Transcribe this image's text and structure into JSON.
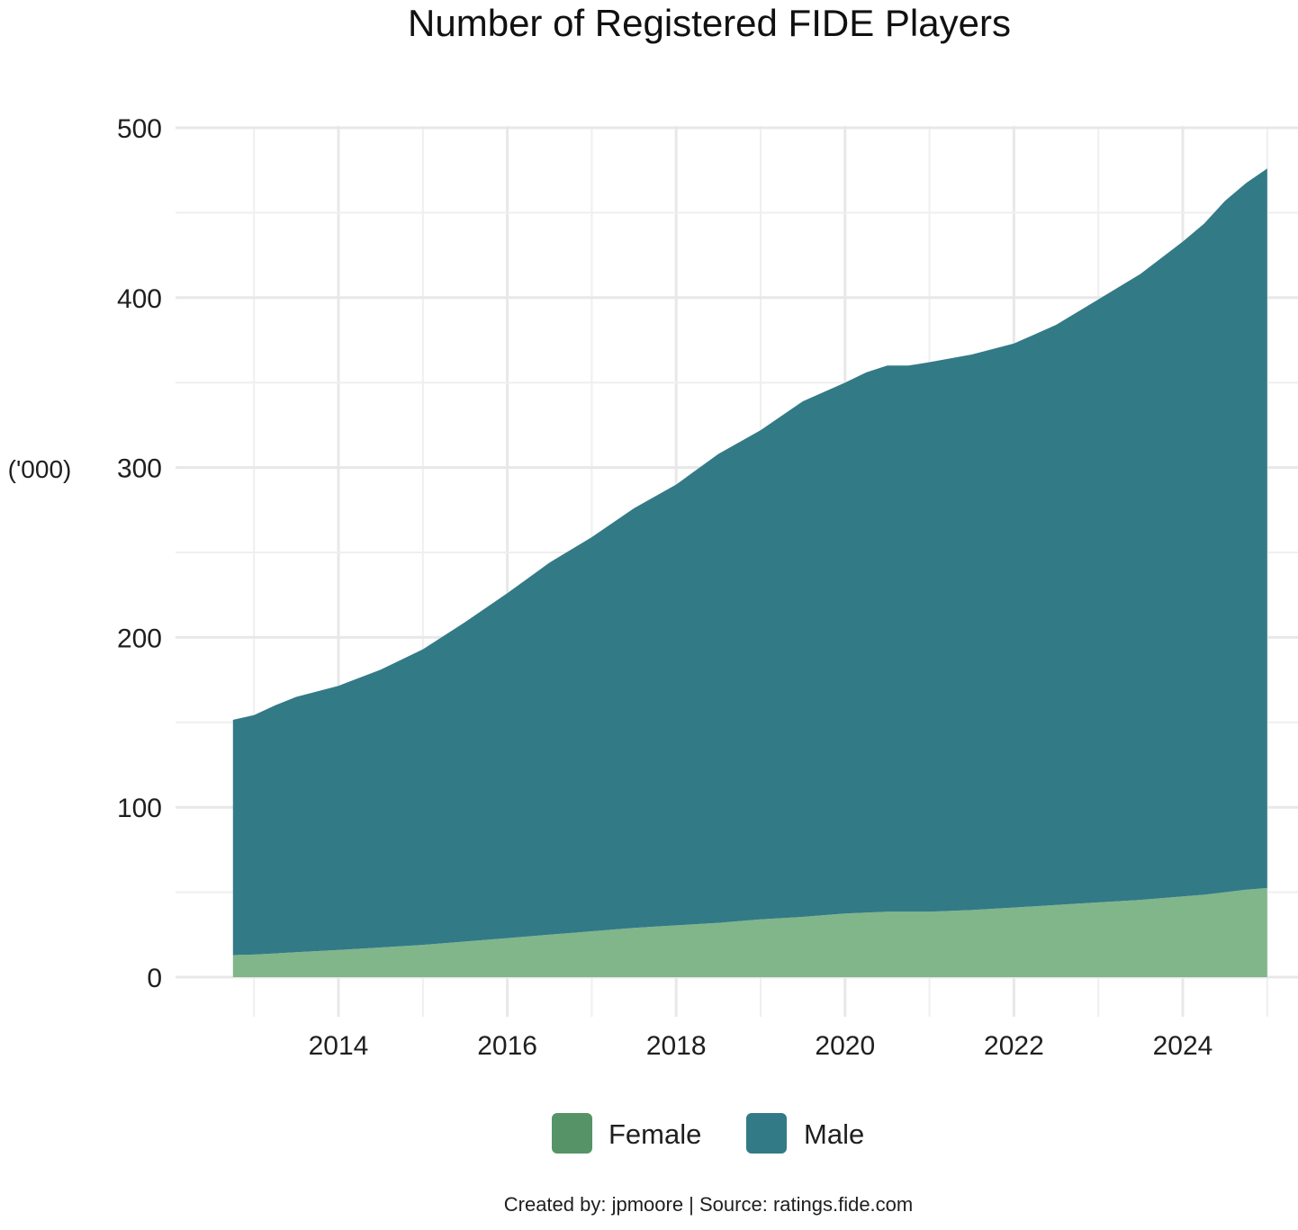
{
  "chart_data": {
    "type": "area",
    "stacked": true,
    "title": "Number of Registered FIDE Players",
    "xlabel": "",
    "ylabel": "('000)",
    "caption": "Created by: jpmoore | Source: ratings.fide.com",
    "x_ticks": [
      "2014",
      "2016",
      "2018",
      "2020",
      "2022",
      "2024"
    ],
    "y_ticks": [
      "0",
      "100",
      "200",
      "300",
      "400",
      "500"
    ],
    "xlim": [
      2012.2,
      2025.4
    ],
    "ylim": [
      -3,
      510
    ],
    "grid": true,
    "legend_position": "bottom",
    "x": [
      2012.75,
      2013.0,
      2013.25,
      2013.5,
      2014.0,
      2014.5,
      2015.0,
      2015.5,
      2016.0,
      2016.5,
      2017.0,
      2017.5,
      2018.0,
      2018.5,
      2019.0,
      2019.5,
      2020.0,
      2020.25,
      2020.5,
      2020.75,
      2021.0,
      2021.5,
      2022.0,
      2022.5,
      2023.0,
      2023.5,
      2024.0,
      2024.25,
      2024.5,
      2024.75,
      2025.0
    ],
    "series": [
      {
        "name": "Female",
        "color": "#80b68a",
        "legend_color": "#569367",
        "values": [
          13,
          13.3,
          14,
          14.7,
          16,
          17.5,
          19,
          21,
          23,
          25,
          27,
          29,
          30.5,
          32,
          34,
          35.5,
          37.5,
          38,
          38.5,
          38.5,
          38.5,
          39.5,
          41,
          42.5,
          44,
          45.5,
          47.5,
          48.5,
          50,
          51.5,
          52.5
        ]
      },
      {
        "name": "Male",
        "color": "#337a87",
        "legend_color": "#337a87",
        "values": [
          138.5,
          141,
          146,
          150.3,
          155.5,
          163.5,
          174,
          188,
          203,
          219,
          232,
          247,
          259.5,
          276,
          288,
          303.5,
          312.5,
          318,
          321.5,
          321.5,
          323.5,
          327,
          332,
          341.5,
          355,
          368.5,
          385.5,
          395,
          407,
          416,
          423.5
        ]
      }
    ]
  }
}
